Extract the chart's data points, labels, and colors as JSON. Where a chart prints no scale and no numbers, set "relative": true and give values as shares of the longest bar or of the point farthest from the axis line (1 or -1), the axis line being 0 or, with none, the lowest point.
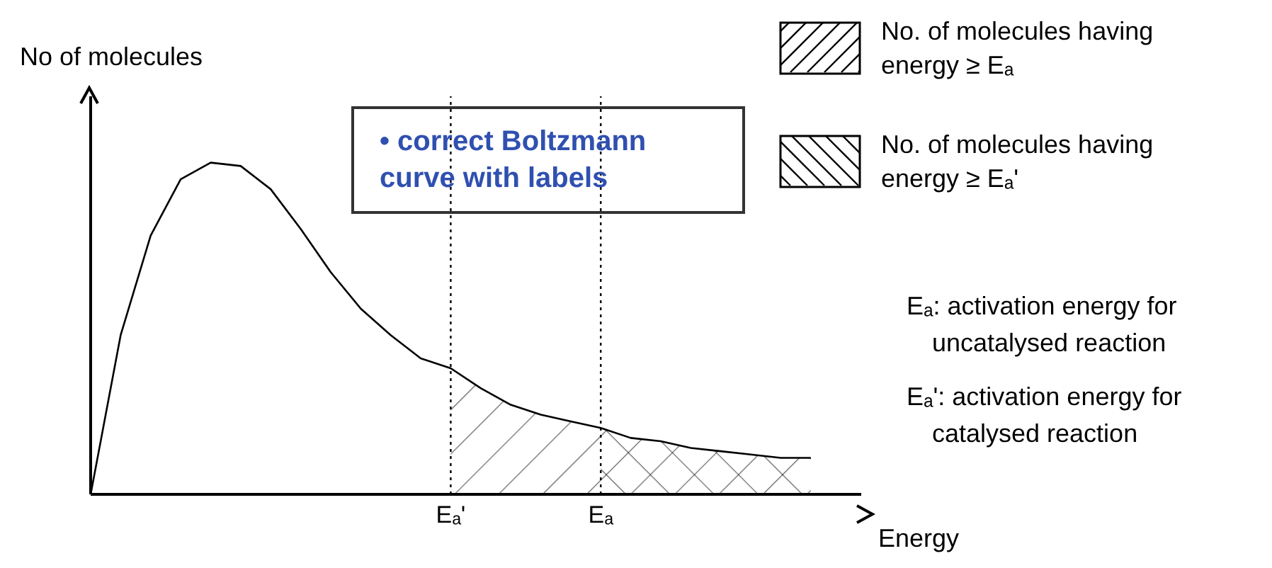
{
  "chart_data": {
    "type": "line",
    "relative": true,
    "xlabel": "Energy",
    "ylabel": "No of molecules",
    "categories": [
      null,
      null,
      null,
      null,
      null,
      null,
      null,
      null,
      null,
      null,
      null,
      null,
      "Eₐ'",
      null,
      null,
      null,
      null,
      "Eₐ",
      null,
      null,
      null,
      null,
      null,
      null,
      null
    ],
    "series": [
      {
        "color": "#000000",
        "values": [
          0,
          0.48,
          0.78,
          0.95,
          1.0,
          0.99,
          0.92,
          0.8,
          0.67,
          0.56,
          0.48,
          0.41,
          0.38,
          0.32,
          0.27,
          0.24,
          0.22,
          0.2,
          0.17,
          0.16,
          0.14,
          0.13,
          0.12,
          0.11,
          0.11
        ]
      },
      {
        "type": "area",
        "name": "No. of molecules having energy ≥ Eₐ",
        "color": "#000000",
        "values": [
          null,
          null,
          null,
          null,
          null,
          null,
          null,
          null,
          null,
          null,
          null,
          null,
          null,
          null,
          null,
          null,
          null,
          0.2,
          0.17,
          0.16,
          0.14,
          0.13,
          0.12,
          0.11,
          0.11
        ]
      },
      {
        "type": "area",
        "name": "No. of molecules having energy ≥ Eₐ'",
        "color": "#000000",
        "values": [
          null,
          null,
          null,
          null,
          null,
          null,
          null,
          null,
          null,
          null,
          null,
          null,
          0.38,
          0.32,
          0.27,
          0.24,
          0.22,
          0.2,
          0.17,
          0.16,
          0.14,
          0.13,
          0.12,
          0.11,
          0.11
        ]
      }
    ],
    "marker": "none",
    "legend": "top right",
    "ref_lines": [
      {
        "axis": "x",
        "value": "Eₐ'",
        "color": "#000000",
        "line_style": "dotted"
      },
      {
        "axis": "x",
        "value": "Eₐ",
        "color": "#000000",
        "line_style": "dotted"
      }
    ],
    "annotations": [
      "• correct Boltzmann curve with labels",
      "Eₐ: activation energy for uncatalysed reaction",
      "Eₐ': activation energy for catalysed reaction"
    ]
  }
}
